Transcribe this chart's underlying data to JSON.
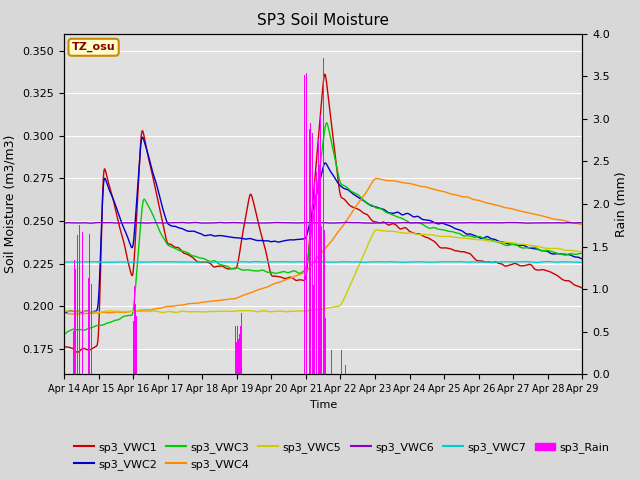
{
  "title": "SP3 Soil Moisture",
  "ylabel_left": "Soil Moisture (m3/m3)",
  "ylabel_right": "Rain (mm)",
  "xlabel": "Time",
  "ylim_left": [
    0.16,
    0.36
  ],
  "ylim_right": [
    0.0,
    4.0
  ],
  "bg_color": "#d8d8d8",
  "plot_bg_color": "#e0e0e0",
  "grid_color": "#ffffff",
  "tz_label": "TZ_osu",
  "tz_bg": "#ffffcc",
  "tz_border": "#cc8800",
  "series_colors": {
    "VWC1": "#cc0000",
    "VWC2": "#0000cc",
    "VWC3": "#00cc00",
    "VWC4": "#ff8800",
    "VWC5": "#cccc00",
    "VWC6": "#8800cc",
    "VWC7": "#00cccc",
    "Rain": "#ff00ff"
  },
  "n_points": 1440,
  "legend_entries": [
    "sp3_VWC1",
    "sp3_VWC2",
    "sp3_VWC3",
    "sp3_VWC4",
    "sp3_VWC5",
    "sp3_VWC6",
    "sp3_VWC7",
    "sp3_Rain"
  ]
}
